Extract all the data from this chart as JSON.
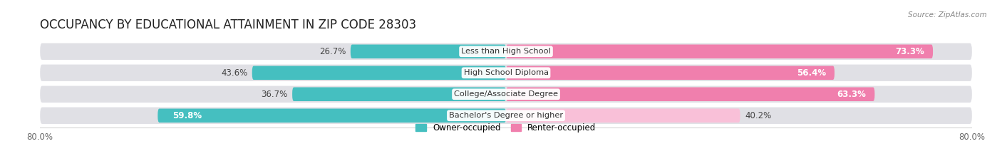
{
  "title": "OCCUPANCY BY EDUCATIONAL ATTAINMENT IN ZIP CODE 28303",
  "source": "Source: ZipAtlas.com",
  "categories": [
    "Less than High School",
    "High School Diploma",
    "College/Associate Degree",
    "Bachelor's Degree or higher"
  ],
  "owner_values": [
    26.7,
    43.6,
    36.7,
    59.8
  ],
  "renter_values": [
    73.3,
    56.4,
    63.3,
    40.2
  ],
  "owner_color": "#45BFC0",
  "renter_color": "#F07FAD",
  "renter_color_light": "#F9C0D8",
  "owner_label": "Owner-occupied",
  "renter_label": "Renter-occupied",
  "xlim_left": -80,
  "xlim_right": 80,
  "background_color": "#ffffff",
  "bar_bg_color": "#e0e0e5",
  "title_fontsize": 12,
  "bar_height": 0.65,
  "bg_bar_height": 0.78
}
